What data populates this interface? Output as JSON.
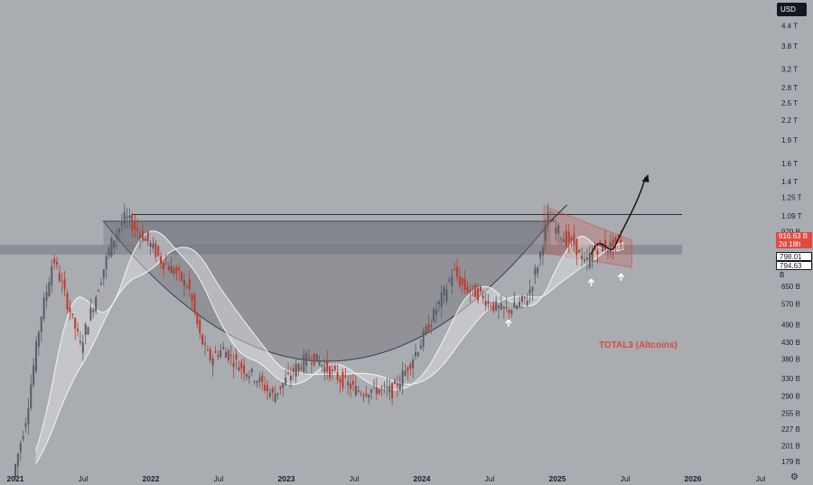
{
  "currency_button": "USD",
  "settings_icon": "gear-icon",
  "annotation": "TOTAL3 (Altcoins)",
  "price_tags": {
    "current_price": "916.63 B",
    "countdown": "2d 18h",
    "ma_one": "798.01 B",
    "ma_two": "794.63 B"
  },
  "colors": {
    "background": "#a9acb1",
    "bull_candle": "#5a5d63",
    "bear_candle": "#c0392b",
    "accent_red": "#e04a3f"
  },
  "chart_data": {
    "type": "candlestick",
    "scale": "log",
    "y_ticks": [
      "4.4 T",
      "3.8 T",
      "3.2 T",
      "2.8 T",
      "2.5 T",
      "2.2 T",
      "1.9 T",
      "1.6 T",
      "1.4 T",
      "1.25 T",
      "1.09 T",
      "970 B",
      "650 B",
      "570 B",
      "490 B",
      "430 B",
      "380 B",
      "330 B",
      "290 B",
      "255 B",
      "227 B",
      "201 B",
      "179 B"
    ],
    "y_tick_values": [
      4400,
      3800,
      3200,
      2800,
      2500,
      2200,
      1900,
      1600,
      1400,
      1250,
      1090,
      970,
      650,
      570,
      490,
      430,
      380,
      330,
      290,
      255,
      227,
      201,
      179
    ],
    "x_ticks": [
      {
        "label": "2021",
        "year": true
      },
      {
        "label": "Jul",
        "year": false
      },
      {
        "label": "2022",
        "year": true
      },
      {
        "label": "Jul",
        "year": false
      },
      {
        "label": "2023",
        "year": true
      },
      {
        "label": "Jul",
        "year": false
      },
      {
        "label": "2024",
        "year": true
      },
      {
        "label": "Jul",
        "year": false
      },
      {
        "label": "2025",
        "year": true
      },
      {
        "label": "Jul",
        "year": false
      },
      {
        "label": "2026",
        "year": true
      },
      {
        "label": "Jul",
        "year": false
      }
    ],
    "x_tick_dates": [
      2021.0,
      2021.5,
      2022.0,
      2022.5,
      2023.0,
      2023.5,
      2024.0,
      2024.5,
      2025.0,
      2025.5,
      2026.0,
      2026.5
    ],
    "x_range": [
      2021.0,
      2026.5
    ],
    "price_path": [
      [
        2021.0,
        160
      ],
      [
        2021.1,
        250
      ],
      [
        2021.2,
        500
      ],
      [
        2021.3,
        800
      ],
      [
        2021.38,
        620
      ],
      [
        2021.5,
        420
      ],
      [
        2021.62,
        620
      ],
      [
        2021.72,
        880
      ],
      [
        2021.83,
        1080
      ],
      [
        2021.9,
        1000
      ],
      [
        2022.0,
        900
      ],
      [
        2022.1,
        780
      ],
      [
        2022.2,
        720
      ],
      [
        2022.3,
        640
      ],
      [
        2022.38,
        450
      ],
      [
        2022.45,
        380
      ],
      [
        2022.55,
        410
      ],
      [
        2022.65,
        370
      ],
      [
        2022.8,
        330
      ],
      [
        2022.92,
        290
      ],
      [
        2023.0,
        320
      ],
      [
        2023.1,
        360
      ],
      [
        2023.2,
        390
      ],
      [
        2023.33,
        350
      ],
      [
        2023.45,
        320
      ],
      [
        2023.55,
        300
      ],
      [
        2023.7,
        305
      ],
      [
        2023.8,
        300
      ],
      [
        2023.9,
        350
      ],
      [
        2024.0,
        420
      ],
      [
        2024.1,
        520
      ],
      [
        2024.2,
        640
      ],
      [
        2024.25,
        730
      ],
      [
        2024.33,
        640
      ],
      [
        2024.45,
        610
      ],
      [
        2024.55,
        560
      ],
      [
        2024.62,
        540
      ],
      [
        2024.72,
        560
      ],
      [
        2024.8,
        600
      ],
      [
        2024.88,
        780
      ],
      [
        2024.95,
        1080
      ],
      [
        2025.0,
        1000
      ],
      [
        2025.08,
        920
      ],
      [
        2025.15,
        880
      ],
      [
        2025.22,
        760
      ],
      [
        2025.28,
        840
      ],
      [
        2025.34,
        880
      ],
      [
        2025.4,
        860
      ],
      [
        2025.47,
        916.63
      ]
    ],
    "resistance_level": 1100,
    "support_zone": [
      820,
      880
    ],
    "projection_target": 1450
  }
}
